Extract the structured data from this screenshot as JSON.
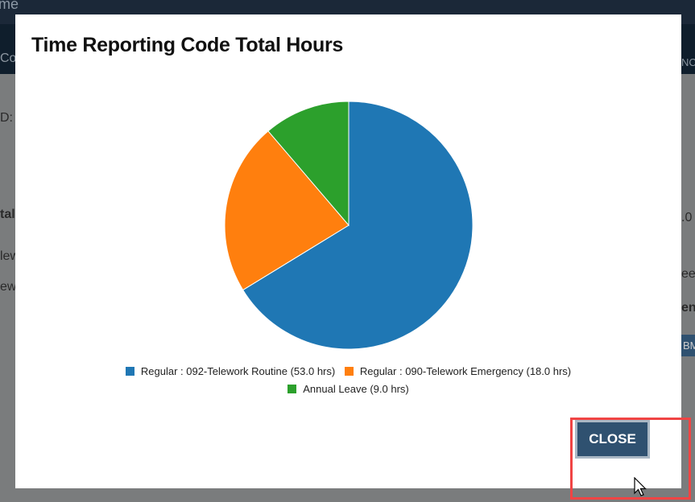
{
  "background": {
    "app_title_fragment": "ime",
    "fragments_left": [
      "Co",
      "D:",
      "tal",
      "lewo",
      "ew"
    ],
    "fragments_right": [
      "NC",
      ".0",
      "ee",
      "en",
      "BM"
    ]
  },
  "modal": {
    "title": "Time Reporting Code Total Hours",
    "close_label": "CLOSE"
  },
  "chart_data": {
    "type": "pie",
    "title": "Time Reporting Code Total Hours",
    "legend_position": "bottom",
    "slices": [
      {
        "label": "Regular : 092-Telework Routine (53.0 hrs)",
        "value": 53.0,
        "color": "#1f77b4"
      },
      {
        "label": "Regular : 090-Telework Emergency (18.0 hrs)",
        "value": 18.0,
        "color": "#ff7f0e"
      },
      {
        "label": "Annual Leave (9.0 hrs)",
        "value": 9.0,
        "color": "#2ca02c"
      }
    ]
  }
}
